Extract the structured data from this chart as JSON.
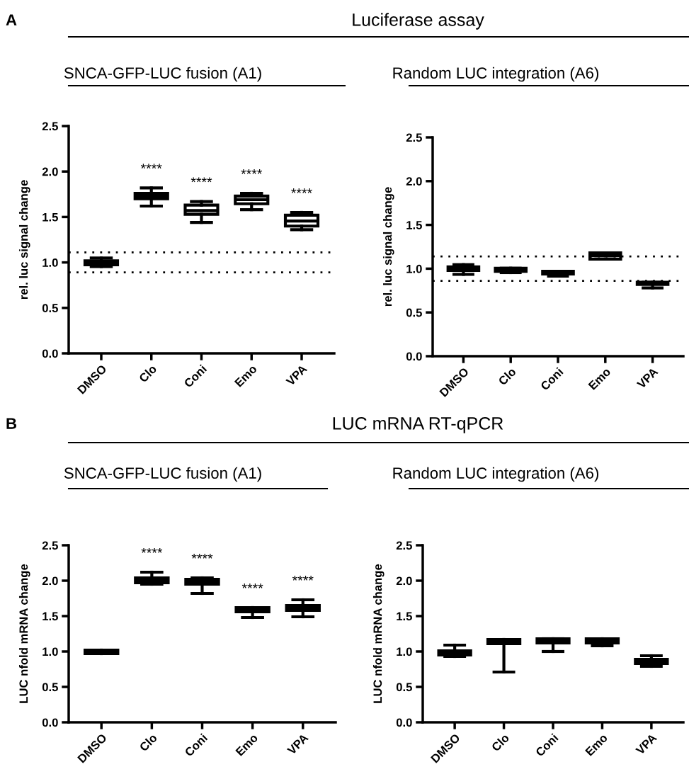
{
  "chart_data": [
    {
      "type": "box",
      "title": "SNCA-GFP-LUC fusion (A1)",
      "ylabel": "rel. luc signal change",
      "color": "#000000",
      "categories": [
        "DMSO",
        "Clo",
        "Coni",
        "Emo",
        "VPA"
      ],
      "boxes": [
        {
          "low": 0.955,
          "q1": 0.975,
          "median": 1.0,
          "q3": 1.017,
          "high": 1.048
        },
        {
          "low": 1.62,
          "q1": 1.7,
          "median": 1.73,
          "q3": 1.76,
          "high": 1.82
        },
        {
          "low": 1.44,
          "q1": 1.53,
          "median": 1.57,
          "q3": 1.63,
          "high": 1.67
        },
        {
          "low": 1.58,
          "q1": 1.645,
          "median": 1.69,
          "q3": 1.73,
          "high": 1.76
        },
        {
          "low": 1.36,
          "q1": 1.4,
          "median": 1.455,
          "q3": 1.52,
          "high": 1.55
        }
      ],
      "ylim": [
        0,
        2.5
      ],
      "yticks": [
        {
          "value": 0,
          "label": "0.0"
        },
        0.5,
        {
          "value": 1,
          "label": "1.0"
        },
        1.5,
        {
          "value": 2,
          "label": "2.0"
        },
        2.5
      ],
      "ref_lines": [
        {
          "axis": "y",
          "value": 1.11,
          "line_style": "dotted"
        },
        {
          "axis": "y",
          "value": 0.89,
          "line_style": "dotted"
        }
      ],
      "annotations": [
        "A",
        "Luciferase assay",
        "****",
        "****",
        "****",
        "****"
      ]
    },
    {
      "type": "box",
      "title": "Random LUC integration (A6)",
      "ylabel": "rel. luc signal change",
      "color": "#000000",
      "categories": [
        "DMSO",
        "Clo",
        "Coni",
        "Emo",
        "VPA"
      ],
      "boxes": [
        {
          "low": 0.935,
          "q1": 0.98,
          "median": 1.0,
          "q3": 1.02,
          "high": 1.046
        },
        {
          "low": 0.955,
          "q1": 0.97,
          "median": 0.99,
          "q3": 1.005,
          "high": 1.005
        },
        {
          "low": 0.915,
          "q1": 0.94,
          "median": 0.955,
          "q3": 0.97,
          "high": 0.97
        },
        {
          "low": 1.11,
          "q1": 1.11,
          "median": 1.15,
          "q3": 1.18,
          "high": 1.18
        },
        {
          "low": 0.78,
          "q1": 0.82,
          "median": 0.83,
          "q3": 0.845,
          "high": 0.845
        }
      ],
      "ylim": [
        0,
        2.5
      ],
      "yticks": [
        {
          "value": 0,
          "label": "0.0"
        },
        0.5,
        {
          "value": 1,
          "label": "1.0"
        },
        1.5,
        {
          "value": 2,
          "label": "2.0"
        },
        2.5
      ],
      "ref_lines": [
        {
          "axis": "y",
          "value": 1.14,
          "line_style": "dotted"
        },
        {
          "axis": "y",
          "value": 0.86,
          "line_style": "dotted"
        }
      ]
    },
    {
      "type": "box",
      "title": "SNCA-GFP-LUC fusion (A1)",
      "ylabel": "LUC nfold mRNA change",
      "color": "#000000",
      "categories": [
        "DMSO",
        "Clo",
        "Coni",
        "Emo",
        "VPA"
      ],
      "boxes": [
        {
          "low": 0.97,
          "q1": 0.97,
          "median": 1.0,
          "q3": 1.02,
          "high": 1.02
        },
        {
          "low": 1.95,
          "q1": 1.97,
          "median": 2.01,
          "q3": 2.04,
          "high": 2.12
        },
        {
          "low": 1.82,
          "q1": 1.95,
          "median": 1.98,
          "q3": 2.02,
          "high": 2.04
        },
        {
          "low": 1.48,
          "q1": 1.56,
          "median": 1.59,
          "q3": 1.62,
          "high": 1.62
        },
        {
          "low": 1.49,
          "q1": 1.58,
          "median": 1.62,
          "q3": 1.65,
          "high": 1.73
        }
      ],
      "ylim": [
        0,
        2.5
      ],
      "yticks": [
        {
          "value": 0,
          "label": "0.0"
        },
        0.5,
        {
          "value": 1,
          "label": "1.0"
        },
        1.5,
        {
          "value": 2,
          "label": "2.0"
        },
        2.5
      ],
      "annotations": [
        "B",
        "LUC mRNA RT-qPCR",
        "****",
        "****",
        "****",
        "****"
      ]
    },
    {
      "type": "box",
      "title": "Random LUC integration (A6)",
      "ylabel": "LUC nfold mRNA change",
      "color": "#000000",
      "categories": [
        "DMSO",
        "Clo",
        "Coni",
        "Emo",
        "VPA"
      ],
      "boxes": [
        {
          "low": 0.93,
          "q1": 0.95,
          "median": 0.98,
          "q3": 1.01,
          "high": 1.09
        },
        {
          "low": 0.71,
          "q1": 1.11,
          "median": 1.14,
          "q3": 1.17,
          "high": 1.17
        },
        {
          "low": 1.0,
          "q1": 1.12,
          "median": 1.15,
          "q3": 1.18,
          "high": 1.18
        },
        {
          "low": 1.08,
          "q1": 1.12,
          "median": 1.15,
          "q3": 1.18,
          "high": 1.18
        },
        {
          "low": 0.79,
          "q1": 0.83,
          "median": 0.86,
          "q3": 0.89,
          "high": 0.94
        }
      ],
      "ylim": [
        0,
        2.5
      ],
      "yticks": [
        {
          "value": 0,
          "label": "0.0"
        },
        0.5,
        {
          "value": 1,
          "label": "1.0"
        },
        1.5,
        {
          "value": 2,
          "label": "2.0"
        },
        2.5
      ]
    }
  ]
}
